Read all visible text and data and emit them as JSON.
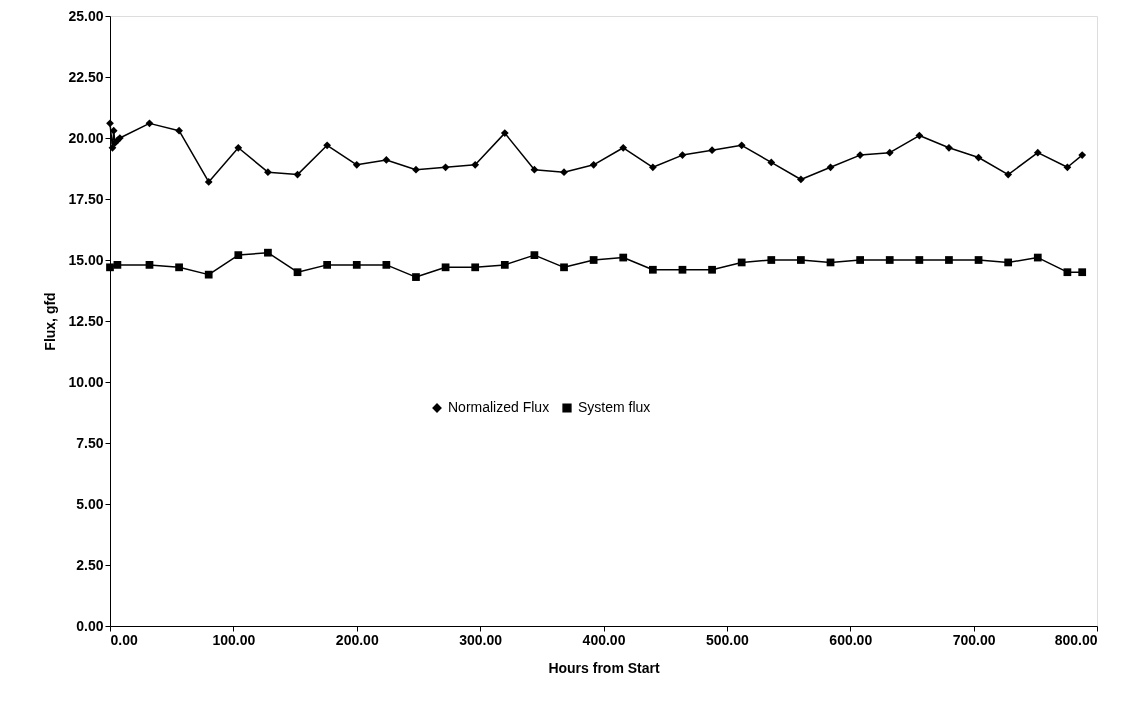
{
  "chart_data": {
    "type": "line",
    "xlabel": "Hours from Start",
    "ylabel": "Flux, gfd",
    "xlim": [
      0,
      800
    ],
    "ylim": [
      0,
      25
    ],
    "xticks": [
      {
        "value": 0,
        "label": "0.00"
      },
      {
        "value": 100,
        "label": "100.00"
      },
      {
        "value": 200,
        "label": "200.00"
      },
      {
        "value": 300,
        "label": "300.00"
      },
      {
        "value": 400,
        "label": "400.00"
      },
      {
        "value": 500,
        "label": "500.00"
      },
      {
        "value": 600,
        "label": "600.00"
      },
      {
        "value": 700,
        "label": "700.00"
      },
      {
        "value": 800,
        "label": "800.00"
      }
    ],
    "yticks": [
      {
        "value": 0,
        "label": "0.00"
      },
      {
        "value": 2.5,
        "label": "2.50"
      },
      {
        "value": 5,
        "label": "5.00"
      },
      {
        "value": 7.5,
        "label": "7.50"
      },
      {
        "value": 10,
        "label": "10.00"
      },
      {
        "value": 12.5,
        "label": "12.50"
      },
      {
        "value": 15,
        "label": "15.00"
      },
      {
        "value": 17.5,
        "label": "17.50"
      },
      {
        "value": 20,
        "label": "20.00"
      },
      {
        "value": 22.5,
        "label": "22.50"
      },
      {
        "value": 25,
        "label": "25.00"
      }
    ],
    "grid": false,
    "legend": "center",
    "line_style": "solid",
    "series": [
      {
        "name": "Normalized Flux",
        "color": "#000000",
        "marker": "diamond",
        "x": [
          0,
          2,
          3,
          4,
          6,
          8,
          32,
          56,
          80,
          104,
          128,
          152,
          176,
          200,
          224,
          248,
          272,
          296,
          320,
          344,
          368,
          392,
          416,
          440,
          464,
          488,
          512,
          536,
          560,
          584,
          608,
          632,
          656,
          680,
          704,
          728,
          752,
          776,
          788
        ],
        "values": [
          20.6,
          19.6,
          20.3,
          19.8,
          19.9,
          20.0,
          20.6,
          20.3,
          18.2,
          19.6,
          18.6,
          18.5,
          19.7,
          18.9,
          19.1,
          18.7,
          18.8,
          18.9,
          20.2,
          18.7,
          18.6,
          18.9,
          19.6,
          18.8,
          19.3,
          19.5,
          19.7,
          19.0,
          18.3,
          18.8,
          19.3,
          19.4,
          20.1,
          19.6,
          19.2,
          18.5,
          19.4,
          18.8,
          19.3
        ]
      },
      {
        "name": "System flux",
        "color": "#000000",
        "marker": "square",
        "x": [
          0,
          6,
          32,
          56,
          80,
          104,
          128,
          152,
          176,
          200,
          224,
          248,
          272,
          296,
          320,
          344,
          368,
          392,
          416,
          440,
          464,
          488,
          512,
          536,
          560,
          584,
          608,
          632,
          656,
          680,
          704,
          728,
          752,
          776,
          788
        ],
        "values": [
          14.7,
          14.8,
          14.8,
          14.7,
          14.4,
          15.2,
          15.3,
          14.5,
          14.8,
          14.8,
          14.8,
          14.3,
          14.7,
          14.7,
          14.8,
          15.2,
          14.7,
          15.0,
          15.1,
          14.6,
          14.6,
          14.6,
          14.9,
          15.0,
          15.0,
          14.9,
          15.0,
          15.0,
          15.0,
          15.0,
          15.0,
          14.9,
          15.1,
          14.5,
          14.5
        ]
      }
    ]
  }
}
